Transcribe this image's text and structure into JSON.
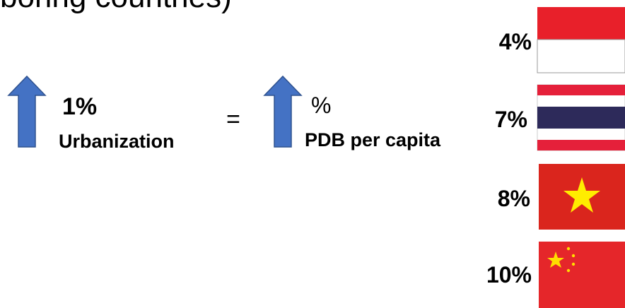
{
  "heading": "boring countries)",
  "left": {
    "change": "1%",
    "label": "Urbanization"
  },
  "equals": "=",
  "right": {
    "change": "%",
    "label": "PDB per capita"
  },
  "flags": [
    {
      "rate": "4%"
    },
    {
      "rate": "7%"
    },
    {
      "rate": "8%"
    },
    {
      "rate": "10%"
    }
  ]
}
